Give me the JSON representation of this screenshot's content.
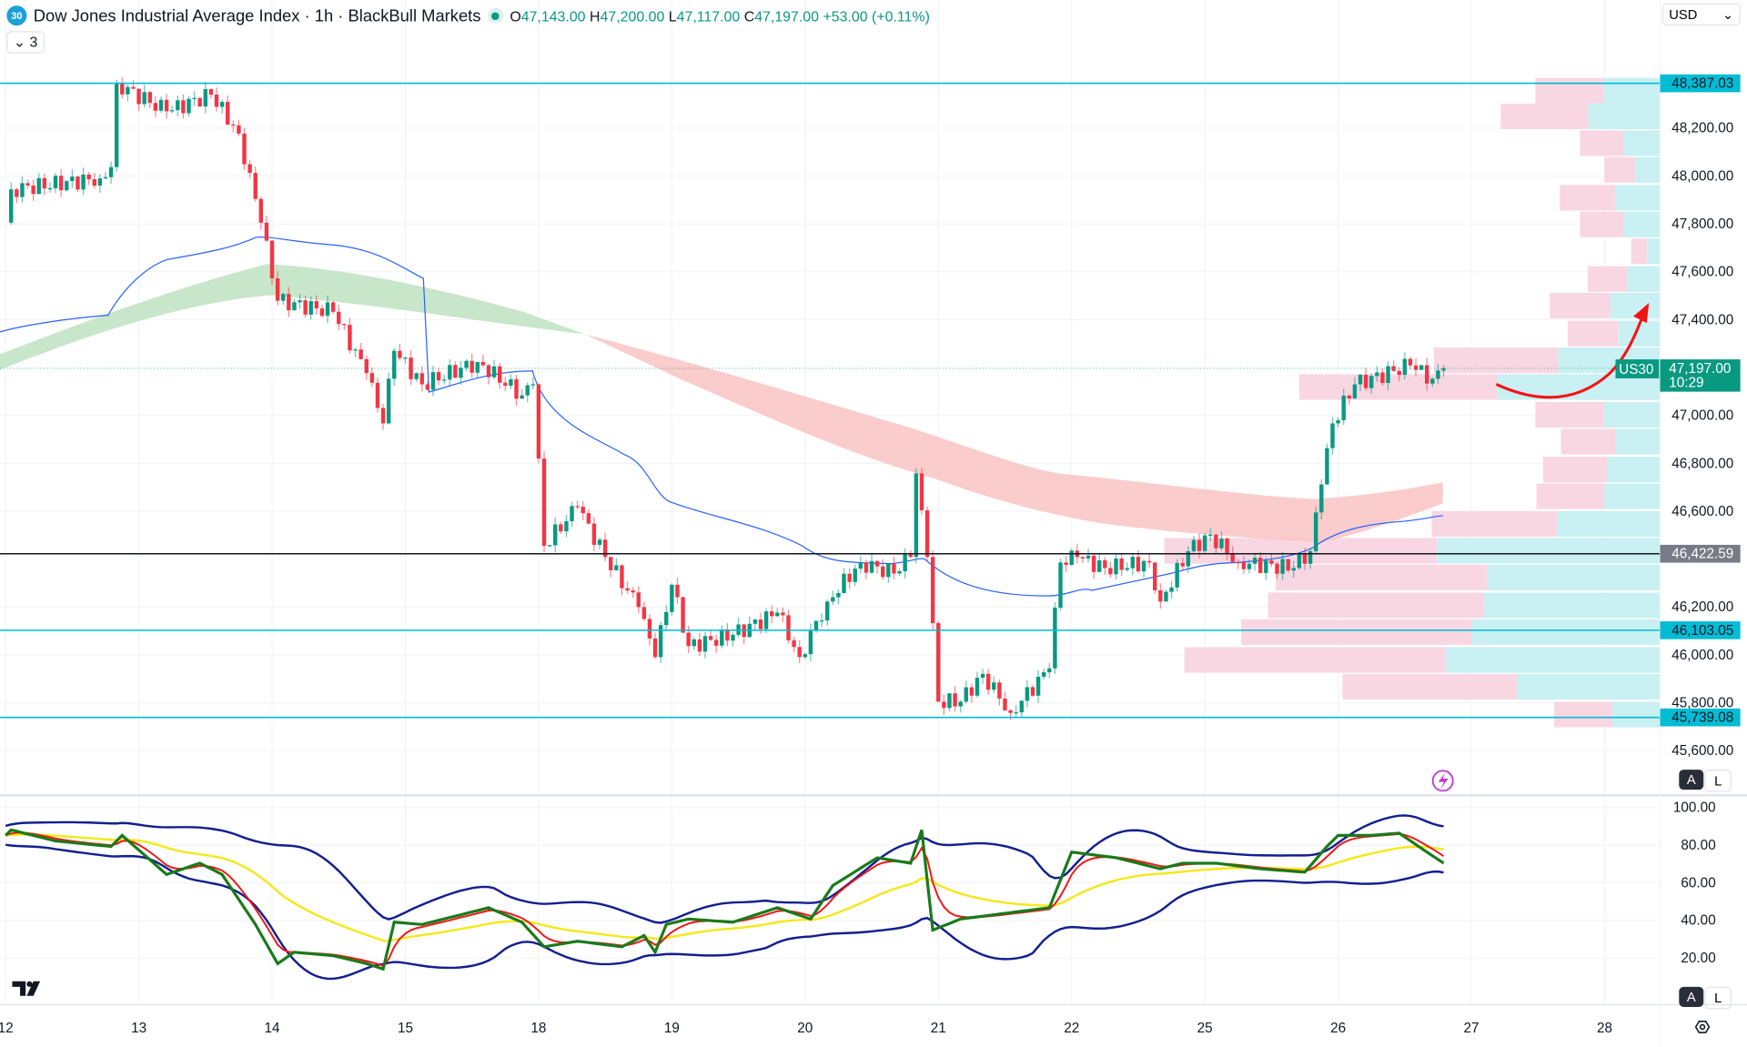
{
  "header": {
    "symbol_badge": "30",
    "title": "Dow Jones Industrial Average Index · 1h · BlackBull Markets",
    "open_label": "O",
    "open": "47,143.00",
    "high_label": "H",
    "high": "47,200.00",
    "low_label": "L",
    "low": "47,117.00",
    "close_label": "C",
    "close": "47,197.00",
    "change": "+53.00 (+0.11%)",
    "indicators_toggle": "3",
    "currency": "USD"
  },
  "colors": {
    "up": "#089981",
    "down": "#f23645",
    "level": "#00bcd4",
    "blue_ma": "#2962ff",
    "bull_band": "#c8e6c9",
    "bear_band": "#f9c6c6"
  },
  "price_axis": {
    "ticks": [
      "48,200.00",
      "48,000.00",
      "47,800.00",
      "47,600.00",
      "47,400.00",
      "47,000.00",
      "46,800.00",
      "46,600.00",
      "46,200.00",
      "46,000.00",
      "45,800.00",
      "45,600.00"
    ],
    "levels": [
      "48,387.03",
      "46,103.05",
      "45,739.08"
    ],
    "horizontal_line": "46,422.59",
    "last_price": "47,197.00",
    "countdown": "10:29",
    "last_symbol": "US30",
    "scale_auto": "A",
    "scale_log": "L"
  },
  "osc_axis": {
    "ticks": [
      "100.00",
      "80.00",
      "60.00",
      "40.00",
      "20.00"
    ],
    "scale_auto": "A",
    "scale_log": "L"
  },
  "time_axis": {
    "ticks": [
      "12",
      "13",
      "14",
      "15",
      "18",
      "19",
      "20",
      "21",
      "22",
      "25",
      "26",
      "27",
      "28"
    ]
  },
  "chart_data": [
    {
      "type": "candlestick",
      "title": "",
      "ylabel": "",
      "ylim": [
        45500,
        48650
      ],
      "grid": true,
      "close_path": [
        [
          "12 00:00",
          47805
        ],
        [
          "12 01:00",
          47944
        ],
        [
          "12 17:00",
          47990
        ],
        [
          "12 19:00",
          48037
        ],
        [
          "12 20:00",
          48386
        ],
        [
          "13 05:00",
          48270
        ],
        [
          "13 13:00",
          48340
        ],
        [
          "13 18:00",
          48177
        ],
        [
          "13 22:00",
          47805
        ],
        [
          "14 01:00",
          47479
        ],
        [
          "14 11:00",
          47433
        ],
        [
          "14 17:00",
          47177
        ],
        [
          "14 20:00",
          46967
        ],
        [
          "14 22:00",
          47270
        ],
        [
          "15 03:00",
          47130
        ],
        [
          "15 13:00",
          47223
        ],
        [
          "15 21:00",
          47084
        ],
        [
          "15 23:00",
          47130
        ],
        [
          "18 01:00",
          46456
        ],
        [
          "18 07:00",
          46619
        ],
        [
          "18 12:00",
          46409
        ],
        [
          "18 18:00",
          46200
        ],
        [
          "18 21:00",
          45991
        ],
        [
          "19 00:00",
          46293
        ],
        [
          "19 03:00",
          46037
        ],
        [
          "19 11:00",
          46084
        ],
        [
          "19 19:00",
          46177
        ],
        [
          "19 23:00",
          45991
        ],
        [
          "20 04:00",
          46223
        ],
        [
          "20 10:00",
          46386
        ],
        [
          "20 16:00",
          46340
        ],
        [
          "20 19:00",
          46409
        ],
        [
          "20 20:00",
          46758
        ],
        [
          "20 22:00",
          46409
        ],
        [
          "21 00:00",
          45805
        ],
        [
          "21 04:00",
          45805
        ],
        [
          "21 08:00",
          45921
        ],
        [
          "21 13:00",
          45758
        ],
        [
          "21 20:00",
          45944
        ],
        [
          "21 22:00",
          46386
        ],
        [
          "22 01:00",
          46409
        ],
        [
          "22 06:00",
          46363
        ],
        [
          "22 14:00",
          46386
        ],
        [
          "22 16:00",
          46223
        ],
        [
          "22 21:00",
          46433
        ],
        [
          "25 01:00",
          46502
        ],
        [
          "25 06:00",
          46386
        ],
        [
          "25 16:00",
          46363
        ],
        [
          "25 19:00",
          46433
        ],
        [
          "25 21:00",
          46712
        ],
        [
          "25 23:00",
          46967
        ],
        [
          "26 03:00",
          47130
        ],
        [
          "26 10:00",
          47186
        ],
        [
          "26 13:00",
          47209
        ],
        [
          "26 17:00",
          47153
        ],
        [
          "26 19:00",
          47197
        ]
      ]
    },
    {
      "type": "line",
      "title": "",
      "ylim": [
        0,
        110
      ],
      "ticks": [
        20,
        40,
        60,
        80,
        100
      ],
      "oscillator": [
        [
          "12 00:00",
          85.2
        ],
        [
          "12 01:00",
          88.1
        ],
        [
          "12 09:00",
          82.2
        ],
        [
          "12 19:00",
          79.3
        ],
        [
          "12 21:00",
          85.2
        ],
        [
          "13 05:00",
          64.4
        ],
        [
          "13 11:00",
          70.4
        ],
        [
          "13 15:00",
          64.4
        ],
        [
          "13 21:00",
          37.8
        ],
        [
          "14 01:00",
          17.0
        ],
        [
          "14 04:00",
          23.0
        ],
        [
          "14 11:00",
          21.2
        ],
        [
          "14 17:00",
          17.0
        ],
        [
          "14 20:00",
          14.1
        ],
        [
          "14 22:00",
          39.0
        ],
        [
          "15 03:00",
          37.8
        ],
        [
          "15 11:00",
          43.7
        ],
        [
          "15 15:00",
          46.7
        ],
        [
          "15 21:00",
          39.0
        ],
        [
          "18 01:00",
          25.9
        ],
        [
          "18 07:00",
          28.9
        ],
        [
          "18 15:00",
          25.9
        ],
        [
          "18 19:00",
          31.9
        ],
        [
          "18 21:00",
          23.0
        ],
        [
          "18 23:00",
          37.8
        ],
        [
          "19 03:00",
          40.7
        ],
        [
          "19 11:00",
          39.0
        ],
        [
          "19 19:00",
          46.7
        ],
        [
          "20 01:00",
          40.7
        ],
        [
          "20 05:00",
          58.5
        ],
        [
          "20 13:00",
          73.3
        ],
        [
          "20 19:00",
          70.4
        ],
        [
          "20 21:00",
          88.1
        ],
        [
          "20 23:00",
          34.8
        ],
        [
          "21 04:00",
          40.7
        ],
        [
          "21 12:00",
          43.7
        ],
        [
          "21 20:00",
          46.7
        ],
        [
          "22 00:00",
          76.3
        ],
        [
          "22 08:00",
          73.3
        ],
        [
          "22 16:00",
          67.4
        ],
        [
          "22 20:00",
          70.4
        ],
        [
          "25 02:00",
          70.4
        ],
        [
          "25 10:00",
          67.4
        ],
        [
          "25 18:00",
          65.6
        ],
        [
          "25 22:00",
          79.3
        ],
        [
          "26 00:00",
          85.2
        ],
        [
          "26 06:00",
          85.2
        ],
        [
          "26 11:00",
          86.4
        ],
        [
          "26 16:00",
          76.3
        ],
        [
          "26 19:00",
          70.4
        ]
      ]
    }
  ]
}
